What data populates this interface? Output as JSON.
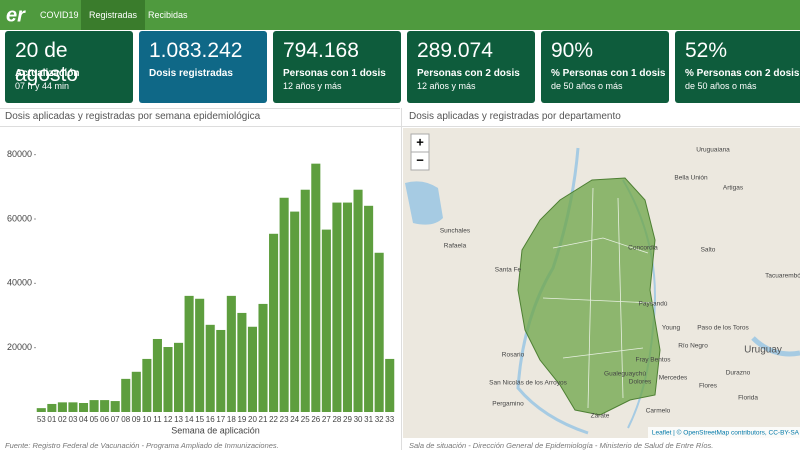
{
  "nav": {
    "tabs": [
      "COVID19",
      "Registradas",
      "Recibidas"
    ]
  },
  "cards": [
    {
      "value": "20 de agosto",
      "label": "Actualización",
      "sub": "07 h y 44 min"
    },
    {
      "value": "1.083.242",
      "label": "Dosis registradas"
    },
    {
      "value": "794.168",
      "label": "Personas con 1 dosis",
      "sub": "12 años y más"
    },
    {
      "value": "289.074",
      "label": "Personas con 2 dosis",
      "sub": "12 años y más"
    },
    {
      "value": "90%",
      "label": "% Personas con 1 dosis",
      "sub": "de 50 años o más"
    },
    {
      "value": "52%",
      "label": "% Personas con 2 dosis",
      "sub": "de 50 años o más"
    }
  ],
  "left_panel": {
    "title": "Dosis aplicadas y registradas por semana epidemiológica",
    "footer": "Fuente: Registro Federal de Vacunación - Programa Ampliado de Inmunizaciones."
  },
  "chart_data": {
    "type": "bar",
    "x_label": "Semana de aplicación",
    "categories": [
      "53",
      "01",
      "02",
      "03",
      "04",
      "05",
      "06",
      "07",
      "08",
      "09",
      "10",
      "11",
      "12",
      "13",
      "14",
      "15",
      "16",
      "17",
      "18",
      "19",
      "20",
      "21",
      "22",
      "23",
      "24",
      "25",
      "26",
      "27",
      "28",
      "29",
      "30",
      "31",
      "32",
      "33"
    ],
    "values": [
      1200,
      2500,
      3000,
      3000,
      2800,
      3700,
      3700,
      3400,
      10300,
      12500,
      16500,
      22700,
      20200,
      21500,
      36100,
      35200,
      27100,
      25500,
      36100,
      30800,
      26500,
      33600,
      55400,
      66600,
      62300,
      69100,
      77200,
      56700,
      65100,
      65100,
      69100,
      64100,
      49500,
      16500
    ],
    "color": "#5e9e3e",
    "ylim": [
      0,
      83000
    ],
    "yticks": [
      20000,
      40000,
      60000,
      80000
    ]
  },
  "right_panel": {
    "title": "Dosis aplicadas y registradas por departamento",
    "footer": "Sala de situación - Dirección General de Epidemiología - Ministerio de Salud de Entre Ríos.",
    "zoom": [
      "+",
      "−"
    ],
    "labels": [
      "Uruguaiana",
      "Bella Unión",
      "Artigas",
      "Sunchales",
      "Rafaela",
      "Santa Fe",
      "Concordia",
      "Salto",
      "Paysandú",
      "Rosario",
      "Young",
      "Paso de los Toros",
      "Fray Bentos",
      "Río Negro",
      "Uruguay",
      "Gualeguaychú",
      "San Nicolás de los Arroyos",
      "Dolores",
      "Mercedes",
      "Durazno",
      "Flores",
      "Pergamino",
      "Zárate",
      "Carmelo",
      "Florida",
      "Tacuarembó"
    ],
    "attribution": "Leaflet | © OpenStreetMap contributors, CC-BY-SA"
  }
}
